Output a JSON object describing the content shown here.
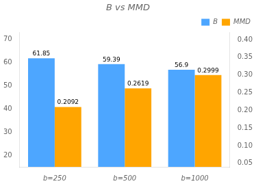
{
  "chart_data": {
    "type": "bar",
    "title": "B vs MMD",
    "categories": [
      "b=250",
      "b=500",
      "b=1000"
    ],
    "series": [
      {
        "name": "B",
        "color": "#4da6ff",
        "values": [
          61.85,
          59.39,
          56.9
        ]
      },
      {
        "name": "MMD",
        "color": "#FFA500",
        "values": [
          0.2092,
          0.2619,
          0.2999
        ],
        "axis": "y2"
      }
    ],
    "ylim": [
      15,
      73
    ],
    "yticks": [
      20,
      30,
      40,
      50,
      60,
      70
    ],
    "y2lim": [
      0.04,
      0.42
    ],
    "y2ticks": [
      0.05,
      {
        "value": 0.1,
        "label": "0.10"
      },
      0.15,
      {
        "value": 0.2,
        "label": "0.20"
      },
      0.25,
      {
        "value": 0.3,
        "label": "0.30"
      },
      0.35,
      {
        "value": 0.4,
        "label": "0.40"
      }
    ],
    "data_labels": true,
    "legend": "upper right",
    "grid": false
  }
}
